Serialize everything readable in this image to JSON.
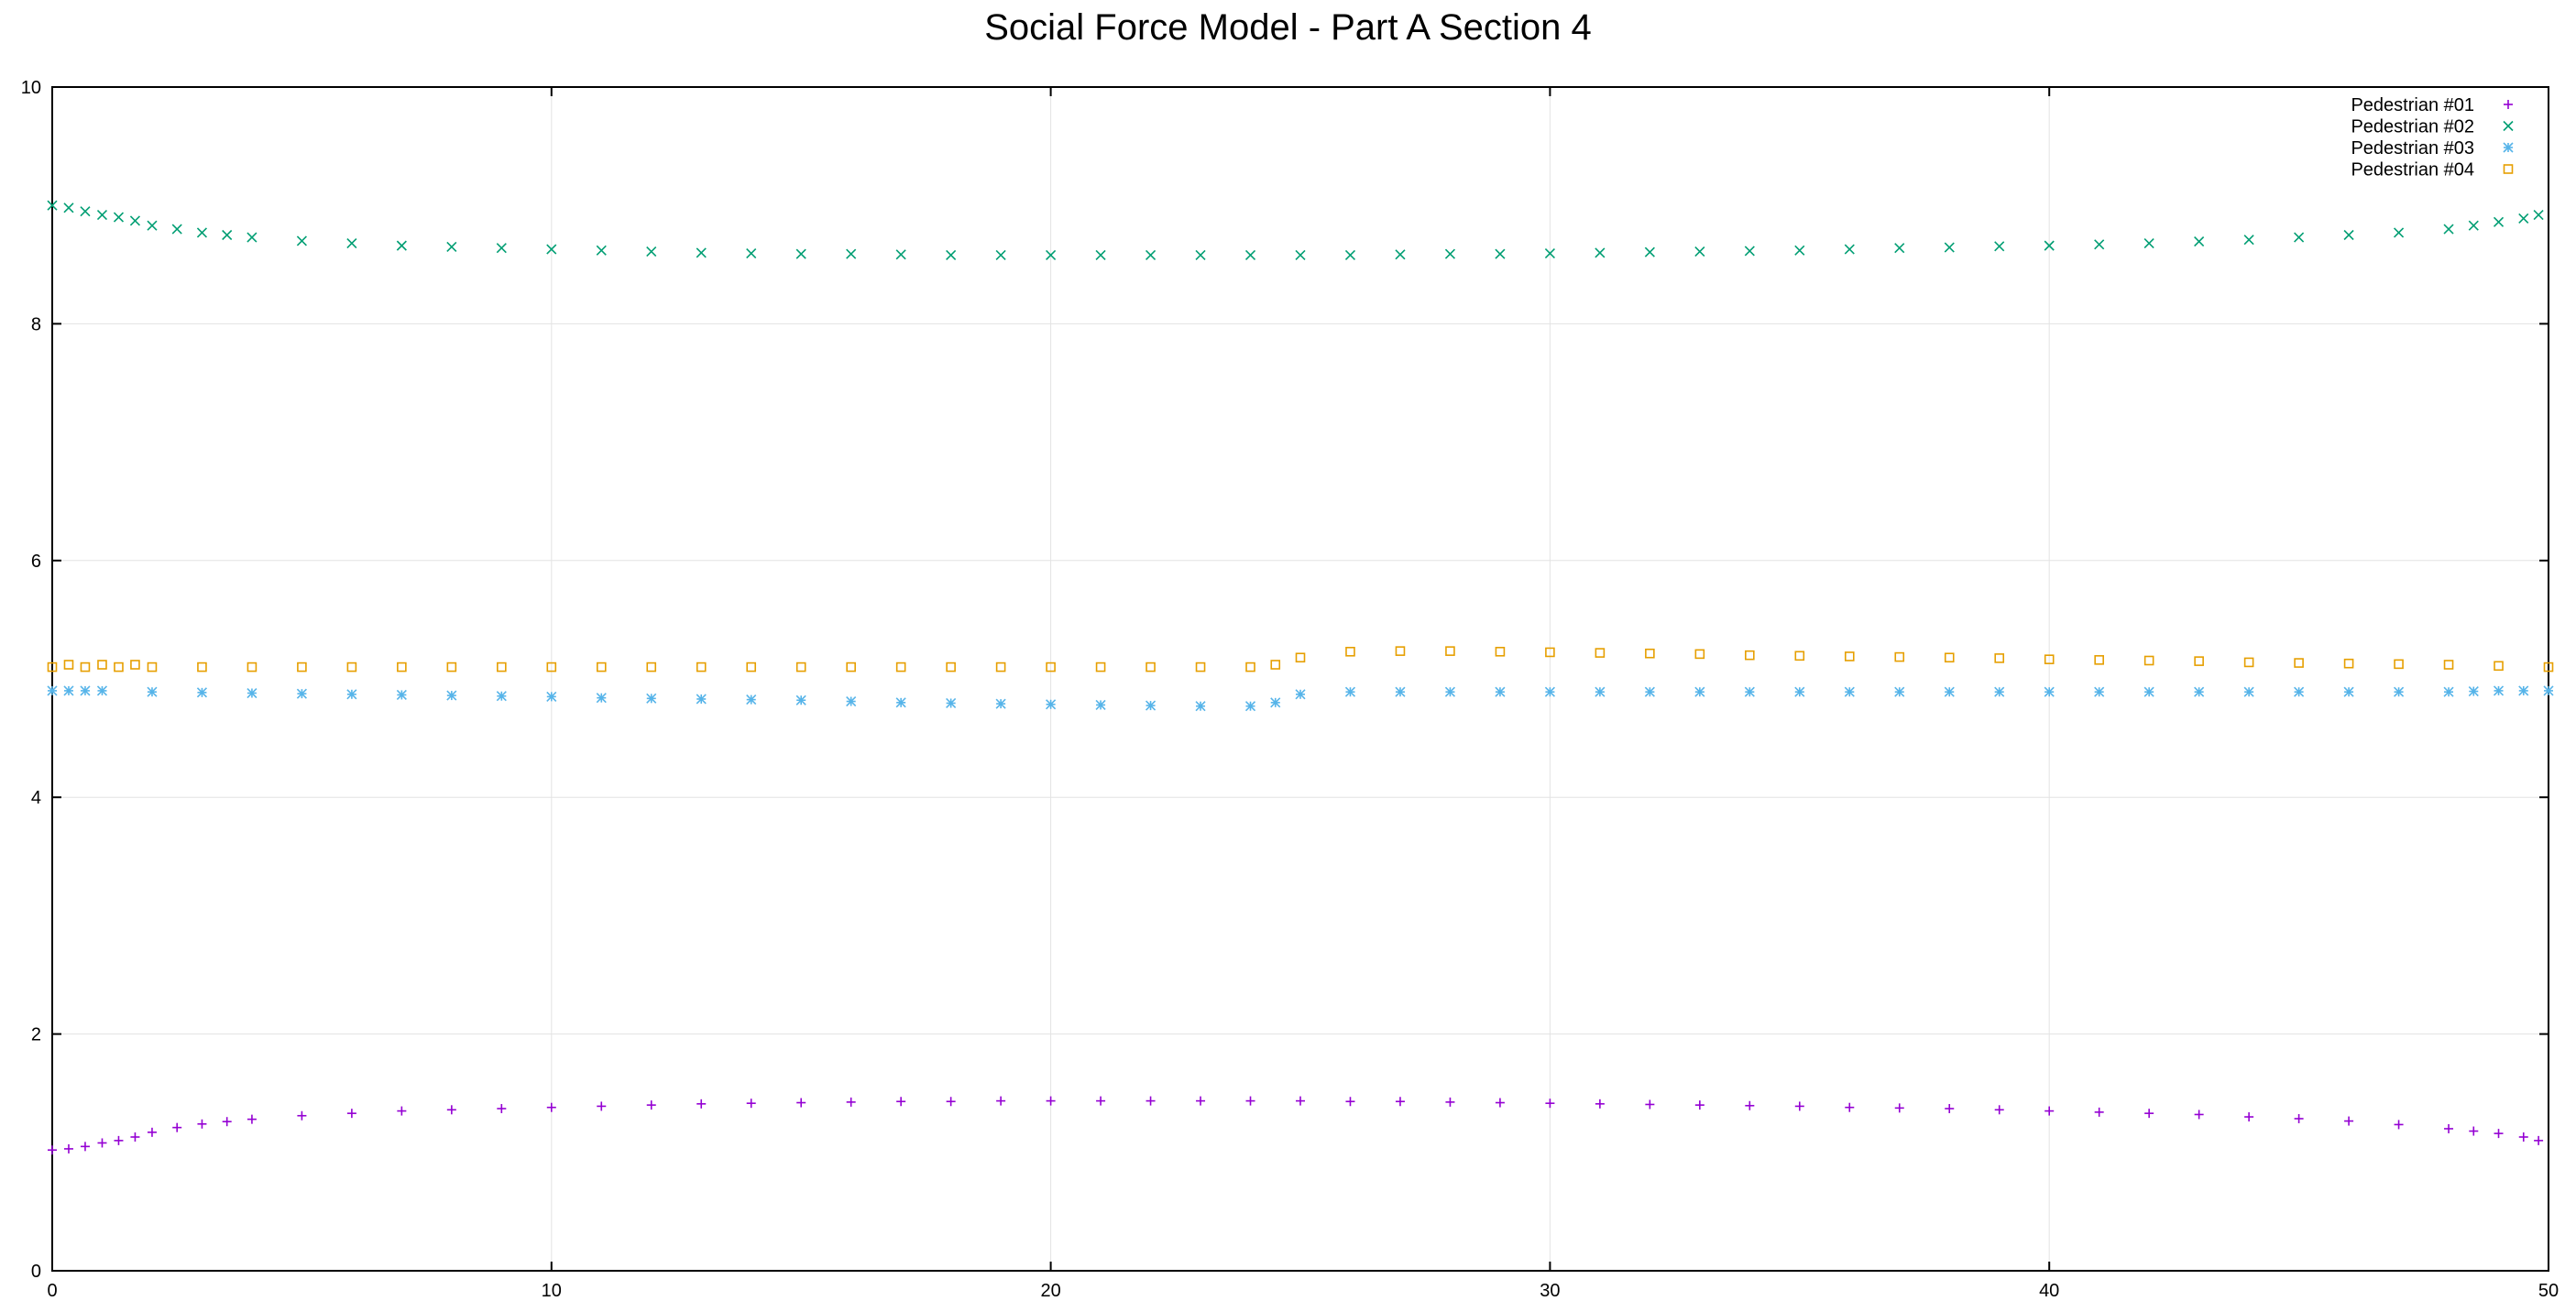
{
  "chart_data": {
    "type": "scatter",
    "title": "Social Force Model - Part A Section 4",
    "xlabel": "",
    "ylabel": "",
    "xlim": [
      0,
      50
    ],
    "ylim": [
      0,
      10
    ],
    "xticks": [
      "0",
      "10",
      "20",
      "30",
      "40",
      "50"
    ],
    "yticks": [
      "0",
      "2",
      "4",
      "6",
      "8",
      "10"
    ],
    "grid": true,
    "legend_position": "top-right",
    "series": [
      {
        "name": "Pedestrian #01",
        "marker": "plus",
        "color": "#9400d3",
        "points": [
          [
            0,
            1.02
          ],
          [
            0.33,
            1.03
          ],
          [
            0.66,
            1.05
          ],
          [
            1,
            1.08
          ],
          [
            1.33,
            1.1
          ],
          [
            1.66,
            1.13
          ],
          [
            2,
            1.17
          ],
          [
            2.5,
            1.21
          ],
          [
            3,
            1.24
          ],
          [
            3.5,
            1.26
          ],
          [
            4,
            1.28
          ],
          [
            5,
            1.31
          ],
          [
            6,
            1.33
          ],
          [
            7,
            1.35
          ],
          [
            8,
            1.36
          ],
          [
            9,
            1.37
          ],
          [
            10,
            1.38
          ],
          [
            11,
            1.39
          ],
          [
            12,
            1.4
          ],
          [
            13,
            1.41
          ],
          [
            14,
            1.415
          ],
          [
            15,
            1.42
          ],
          [
            16,
            1.425
          ],
          [
            17,
            1.43
          ],
          [
            18,
            1.43
          ],
          [
            19,
            1.435
          ],
          [
            20,
            1.435
          ],
          [
            21,
            1.435
          ],
          [
            22,
            1.435
          ],
          [
            23,
            1.435
          ],
          [
            24,
            1.435
          ],
          [
            25,
            1.435
          ],
          [
            26,
            1.43
          ],
          [
            27,
            1.43
          ],
          [
            28,
            1.425
          ],
          [
            29,
            1.42
          ],
          [
            30,
            1.415
          ],
          [
            31,
            1.41
          ],
          [
            32,
            1.405
          ],
          [
            33,
            1.4
          ],
          [
            34,
            1.395
          ],
          [
            35,
            1.39
          ],
          [
            36,
            1.38
          ],
          [
            37,
            1.375
          ],
          [
            38,
            1.37
          ],
          [
            39,
            1.36
          ],
          [
            40,
            1.35
          ],
          [
            41,
            1.34
          ],
          [
            42,
            1.33
          ],
          [
            43,
            1.32
          ],
          [
            44,
            1.3
          ],
          [
            45,
            1.285
          ],
          [
            46,
            1.265
          ],
          [
            47,
            1.235
          ],
          [
            48,
            1.2
          ],
          [
            48.5,
            1.18
          ],
          [
            49,
            1.16
          ],
          [
            49.5,
            1.13
          ],
          [
            49.8,
            1.1
          ]
        ]
      },
      {
        "name": "Pedestrian #02",
        "marker": "cross",
        "color": "#009e73",
        "points": [
          [
            0,
            9
          ],
          [
            0.33,
            8.98
          ],
          [
            0.66,
            8.95
          ],
          [
            1,
            8.92
          ],
          [
            1.33,
            8.9
          ],
          [
            1.66,
            8.87
          ],
          [
            2,
            8.83
          ],
          [
            2.5,
            8.8
          ],
          [
            3,
            8.77
          ],
          [
            3.5,
            8.75
          ],
          [
            4,
            8.73
          ],
          [
            5,
            8.7
          ],
          [
            6,
            8.68
          ],
          [
            7,
            8.66
          ],
          [
            8,
            8.65
          ],
          [
            9,
            8.64
          ],
          [
            10,
            8.63
          ],
          [
            11,
            8.62
          ],
          [
            12,
            8.61
          ],
          [
            13,
            8.6
          ],
          [
            14,
            8.595
          ],
          [
            15,
            8.59
          ],
          [
            16,
            8.59
          ],
          [
            17,
            8.585
          ],
          [
            18,
            8.58
          ],
          [
            19,
            8.58
          ],
          [
            20,
            8.58
          ],
          [
            21,
            8.58
          ],
          [
            22,
            8.58
          ],
          [
            23,
            8.58
          ],
          [
            24,
            8.58
          ],
          [
            25,
            8.58
          ],
          [
            26,
            8.58
          ],
          [
            27,
            8.585
          ],
          [
            28,
            8.59
          ],
          [
            29,
            8.59
          ],
          [
            30,
            8.595
          ],
          [
            31,
            8.6
          ],
          [
            32,
            8.605
          ],
          [
            33,
            8.61
          ],
          [
            34,
            8.615
          ],
          [
            35,
            8.62
          ],
          [
            36,
            8.63
          ],
          [
            37,
            8.64
          ],
          [
            38,
            8.645
          ],
          [
            39,
            8.655
          ],
          [
            40,
            8.66
          ],
          [
            41,
            8.67
          ],
          [
            42,
            8.68
          ],
          [
            43,
            8.695
          ],
          [
            44,
            8.71
          ],
          [
            45,
            8.73
          ],
          [
            46,
            8.75
          ],
          [
            47,
            8.77
          ],
          [
            48,
            8.8
          ],
          [
            48.5,
            8.83
          ],
          [
            49,
            8.86
          ],
          [
            49.5,
            8.89
          ],
          [
            49.8,
            8.92
          ]
        ]
      },
      {
        "name": "Pedestrian #03",
        "marker": "star",
        "color": "#56b4e9",
        "points": [
          [
            0,
            4.9
          ],
          [
            0.33,
            4.9
          ],
          [
            0.66,
            4.9
          ],
          [
            1,
            4.9
          ],
          [
            2,
            4.89
          ],
          [
            3,
            4.885
          ],
          [
            4,
            4.88
          ],
          [
            5,
            4.875
          ],
          [
            6,
            4.87
          ],
          [
            7,
            4.865
          ],
          [
            8,
            4.86
          ],
          [
            9,
            4.855
          ],
          [
            10,
            4.85
          ],
          [
            11,
            4.84
          ],
          [
            12,
            4.835
          ],
          [
            13,
            4.83
          ],
          [
            14,
            4.825
          ],
          [
            15,
            4.82
          ],
          [
            16,
            4.81
          ],
          [
            17,
            4.8
          ],
          [
            18,
            4.795
          ],
          [
            19,
            4.79
          ],
          [
            20,
            4.785
          ],
          [
            21,
            4.78
          ],
          [
            22,
            4.775
          ],
          [
            23,
            4.77
          ],
          [
            24,
            4.77
          ],
          [
            24.5,
            4.8
          ],
          [
            25,
            4.87
          ],
          [
            26,
            4.89
          ],
          [
            27,
            4.89
          ],
          [
            28,
            4.89
          ],
          [
            29,
            4.89
          ],
          [
            30,
            4.89
          ],
          [
            31,
            4.89
          ],
          [
            32,
            4.89
          ],
          [
            33,
            4.89
          ],
          [
            34,
            4.89
          ],
          [
            35,
            4.89
          ],
          [
            36,
            4.89
          ],
          [
            37,
            4.89
          ],
          [
            38,
            4.89
          ],
          [
            39,
            4.89
          ],
          [
            40,
            4.89
          ],
          [
            41,
            4.89
          ],
          [
            42,
            4.89
          ],
          [
            43,
            4.89
          ],
          [
            44,
            4.89
          ],
          [
            45,
            4.89
          ],
          [
            46,
            4.89
          ],
          [
            47,
            4.89
          ],
          [
            48,
            4.89
          ],
          [
            48.5,
            4.895
          ],
          [
            49,
            4.9
          ],
          [
            49.5,
            4.9
          ],
          [
            50,
            4.9
          ]
        ]
      },
      {
        "name": "Pedestrian #04",
        "marker": "square",
        "color": "#e69f00",
        "points": [
          [
            0,
            5.1
          ],
          [
            0.33,
            5.12
          ],
          [
            0.66,
            5.1
          ],
          [
            1,
            5.12
          ],
          [
            1.33,
            5.1
          ],
          [
            1.66,
            5.12
          ],
          [
            2,
            5.1
          ],
          [
            3,
            5.1
          ],
          [
            4,
            5.1
          ],
          [
            5,
            5.1
          ],
          [
            6,
            5.1
          ],
          [
            7,
            5.1
          ],
          [
            8,
            5.1
          ],
          [
            9,
            5.1
          ],
          [
            10,
            5.1
          ],
          [
            11,
            5.1
          ],
          [
            12,
            5.1
          ],
          [
            13,
            5.1
          ],
          [
            14,
            5.1
          ],
          [
            15,
            5.1
          ],
          [
            16,
            5.1
          ],
          [
            17,
            5.1
          ],
          [
            18,
            5.1
          ],
          [
            19,
            5.1
          ],
          [
            20,
            5.1
          ],
          [
            21,
            5.1
          ],
          [
            22,
            5.1
          ],
          [
            23,
            5.1
          ],
          [
            24,
            5.1
          ],
          [
            24.5,
            5.12
          ],
          [
            25,
            5.18
          ],
          [
            26,
            5.23
          ],
          [
            27,
            5.235
          ],
          [
            28,
            5.235
          ],
          [
            29,
            5.23
          ],
          [
            30,
            5.225
          ],
          [
            31,
            5.22
          ],
          [
            32,
            5.215
          ],
          [
            33,
            5.21
          ],
          [
            34,
            5.2
          ],
          [
            35,
            5.195
          ],
          [
            36,
            5.19
          ],
          [
            37,
            5.185
          ],
          [
            38,
            5.18
          ],
          [
            39,
            5.175
          ],
          [
            40,
            5.165
          ],
          [
            41,
            5.16
          ],
          [
            42,
            5.155
          ],
          [
            43,
            5.15
          ],
          [
            44,
            5.14
          ],
          [
            45,
            5.135
          ],
          [
            46,
            5.13
          ],
          [
            47,
            5.125
          ],
          [
            48,
            5.12
          ],
          [
            49,
            5.11
          ],
          [
            50,
            5.1
          ]
        ]
      }
    ]
  }
}
